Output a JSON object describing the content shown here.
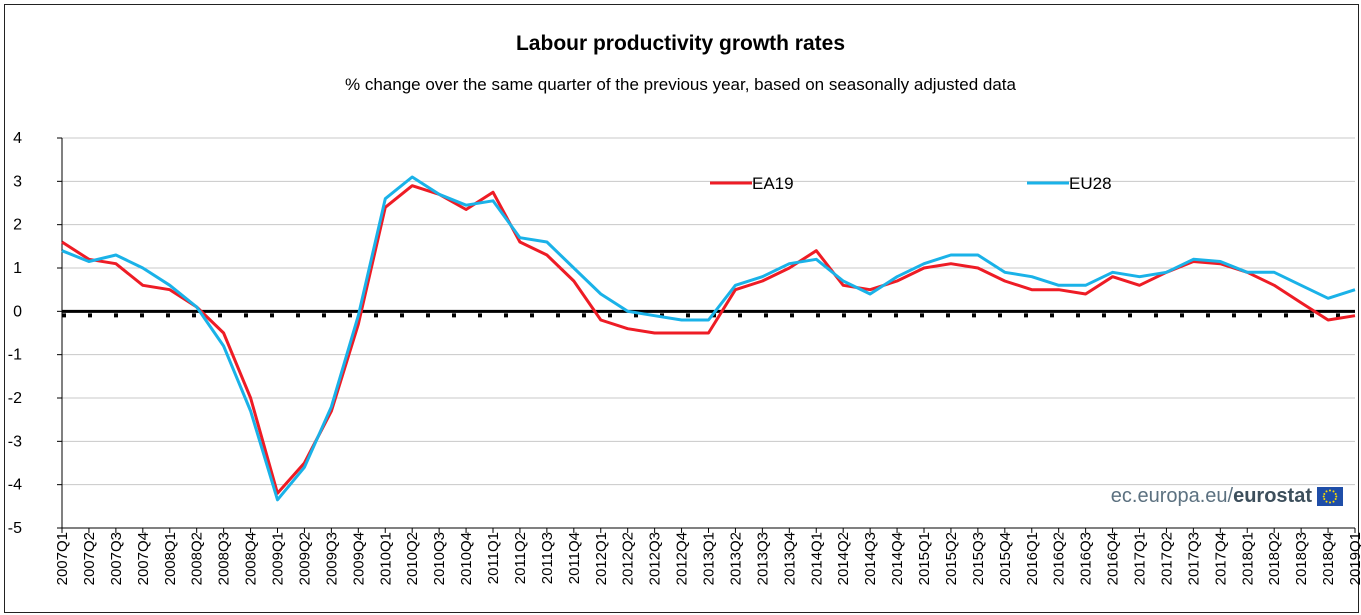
{
  "chart_data": {
    "type": "line",
    "title": "Labour productivity growth rates",
    "subtitle": "% change over the same quarter of the previous year, based on seasonally adjusted data",
    "categories": [
      "2007Q1",
      "2007Q2",
      "2007Q3",
      "2007Q4",
      "2008Q1",
      "2008Q2",
      "2008Q3",
      "2008Q4",
      "2009Q1",
      "2009Q2",
      "2009Q3",
      "2009Q4",
      "2010Q1",
      "2010Q2",
      "2010Q3",
      "2010Q4",
      "2011Q1",
      "2011Q2",
      "2011Q3",
      "2011Q4",
      "2012Q1",
      "2012Q2",
      "2012Q3",
      "2012Q4",
      "2013Q1",
      "2013Q2",
      "2013Q3",
      "2013Q4",
      "2014Q1",
      "2014Q2",
      "2014Q3",
      "2014Q4",
      "2015Q1",
      "2015Q2",
      "2015Q3",
      "2015Q4",
      "2016Q1",
      "2016Q2",
      "2016Q3",
      "2016Q4",
      "2017Q1",
      "2017Q2",
      "2017Q3",
      "2017Q4",
      "2018Q1",
      "2018Q2",
      "2018Q3",
      "2018Q4",
      "2019Q1"
    ],
    "series": [
      {
        "name": "EA19",
        "color": "#ee1c25",
        "values": [
          1.6,
          1.2,
          1.1,
          0.6,
          0.5,
          0.1,
          -0.5,
          -2.0,
          -4.2,
          -3.5,
          -2.3,
          -0.3,
          2.4,
          2.9,
          2.7,
          2.35,
          2.75,
          1.6,
          1.3,
          0.7,
          -0.2,
          -0.4,
          -0.5,
          -0.5,
          -0.5,
          0.5,
          0.7,
          1.0,
          1.4,
          0.6,
          0.5,
          0.7,
          1.0,
          1.1,
          1.0,
          0.7,
          0.5,
          0.5,
          0.4,
          0.8,
          0.6,
          0.9,
          1.15,
          1.1,
          0.9,
          0.6,
          0.2,
          -0.2,
          -0.1
        ]
      },
      {
        "name": "EU28",
        "color": "#1ab2e8",
        "values": [
          1.4,
          1.15,
          1.3,
          1.0,
          0.6,
          0.1,
          -0.8,
          -2.3,
          -4.35,
          -3.6,
          -2.2,
          -0.1,
          2.6,
          3.1,
          2.7,
          2.45,
          2.55,
          1.7,
          1.6,
          1.0,
          0.4,
          0.0,
          -0.1,
          -0.2,
          -0.2,
          0.6,
          0.8,
          1.1,
          1.2,
          0.7,
          0.4,
          0.8,
          1.1,
          1.3,
          1.3,
          0.9,
          0.8,
          0.6,
          0.6,
          0.9,
          0.8,
          0.9,
          1.2,
          1.15,
          0.9,
          0.9,
          0.6,
          0.3,
          0.5
        ]
      }
    ],
    "ylim": [
      -5,
      4
    ],
    "yticks": [
      -5,
      -4,
      -3,
      -2,
      -1,
      0,
      1,
      2,
      3,
      4
    ],
    "grid": true,
    "legend_position": "top-right"
  },
  "watermark": {
    "prefix": "ec.europa.eu/",
    "brand": "eurostat"
  }
}
